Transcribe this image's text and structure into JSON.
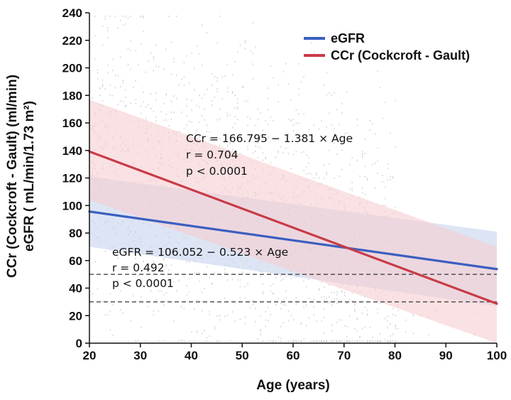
{
  "chart_data": {
    "type": "scatter",
    "xlabel": "Age (years)",
    "ylabel_line1": "CCr (Cockcroft - Gault) (ml/min)",
    "ylabel_line2": "eGFR ( mL/min/1.73 m²)",
    "xlim": [
      20,
      100
    ],
    "ylim": [
      0,
      240
    ],
    "xticks": [
      "20",
      "30",
      "40",
      "50",
      "60",
      "70",
      "80",
      "90",
      "100"
    ],
    "yticks": [
      "0",
      "20",
      "40",
      "60",
      "80",
      "100",
      "120",
      "140",
      "160",
      "180",
      "200",
      "220",
      "240"
    ],
    "grid": false,
    "legend_position": "top-right",
    "series": [
      {
        "name": "eGFR",
        "color": "#3a5fbf",
        "band_color": "#c7d4ee",
        "x": [
          20,
          100
        ],
        "y": [
          95.6,
          53.8
        ],
        "band_lower": [
          70,
          27
        ],
        "band_upper": [
          121,
          81
        ]
      },
      {
        "name": "CCr (Cockcroft - Gault)",
        "color": "#c93b46",
        "band_color": "#f6cdd0",
        "x": [
          20,
          100
        ],
        "y": [
          139.2,
          28.7
        ],
        "band_lower": [
          104,
          0
        ],
        "band_upper": [
          177,
          70
        ]
      }
    ],
    "reference_lines": [
      50,
      30
    ],
    "annotations": {
      "ccr": [
        "CCr = 166.795 − 1.381 × Age",
        "r = 0.704",
        "p < 0.0001"
      ],
      "egfr": [
        "eGFR = 106.052 − 0.523 × Age",
        "r = 0.492",
        "p < 0.0001"
      ]
    },
    "scatter_color": "#b8b8b8"
  }
}
